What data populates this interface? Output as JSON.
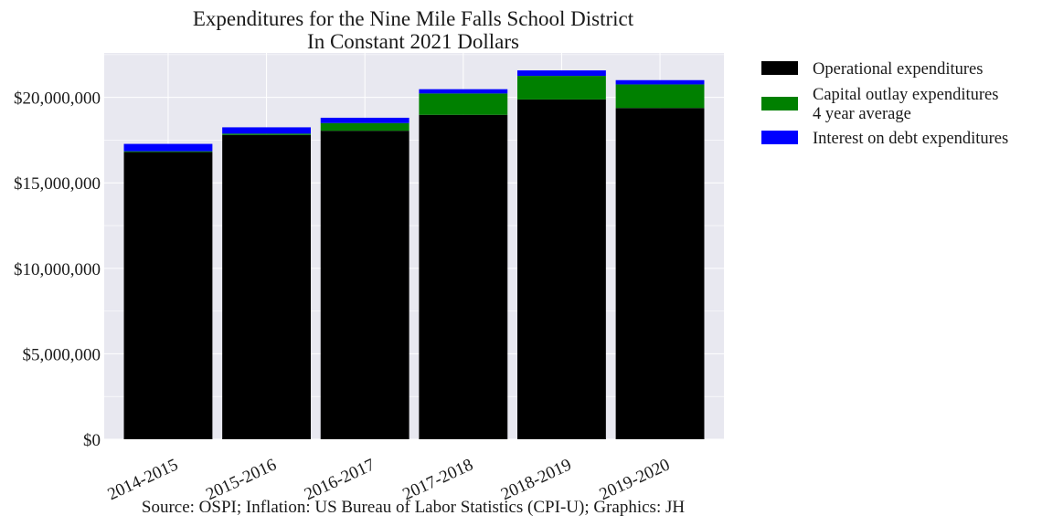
{
  "chart_data": {
    "type": "bar",
    "stacked": true,
    "title": [
      "Expenditures for the Nine Mile Falls School District",
      "In Constant 2021 Dollars"
    ],
    "source": "Source: OSPI; Inflation: US Bureau of Labor Statistics (CPI-U); Graphics: JH",
    "xlabel": "",
    "ylabel": "",
    "categories": [
      "2014-2015",
      "2015-2016",
      "2016-2017",
      "2017-2018",
      "2018-2019",
      "2019-2020"
    ],
    "ylim": [
      0,
      22600000
    ],
    "yticks": [
      0,
      5000000,
      10000000,
      15000000,
      20000000
    ],
    "ytick_labels": [
      "$0",
      "$5,000,000",
      "$10,000,000",
      "$15,000,000",
      "$20,000,000"
    ],
    "grid": true,
    "legend_position": "outside-right-top",
    "series": [
      {
        "name": "Operational expenditures",
        "color": "#000000",
        "values": [
          16800000,
          17800000,
          18050000,
          18980000,
          19880000,
          19380000
        ]
      },
      {
        "name": "Capital outlay expenditures\n4 year average",
        "color": "#008000",
        "values": [
          50000,
          80000,
          450000,
          1250000,
          1380000,
          1380000
        ]
      },
      {
        "name": "Interest on debt expenditures",
        "color": "#0000ff",
        "values": [
          430000,
          370000,
          310000,
          250000,
          320000,
          250000
        ]
      }
    ]
  }
}
